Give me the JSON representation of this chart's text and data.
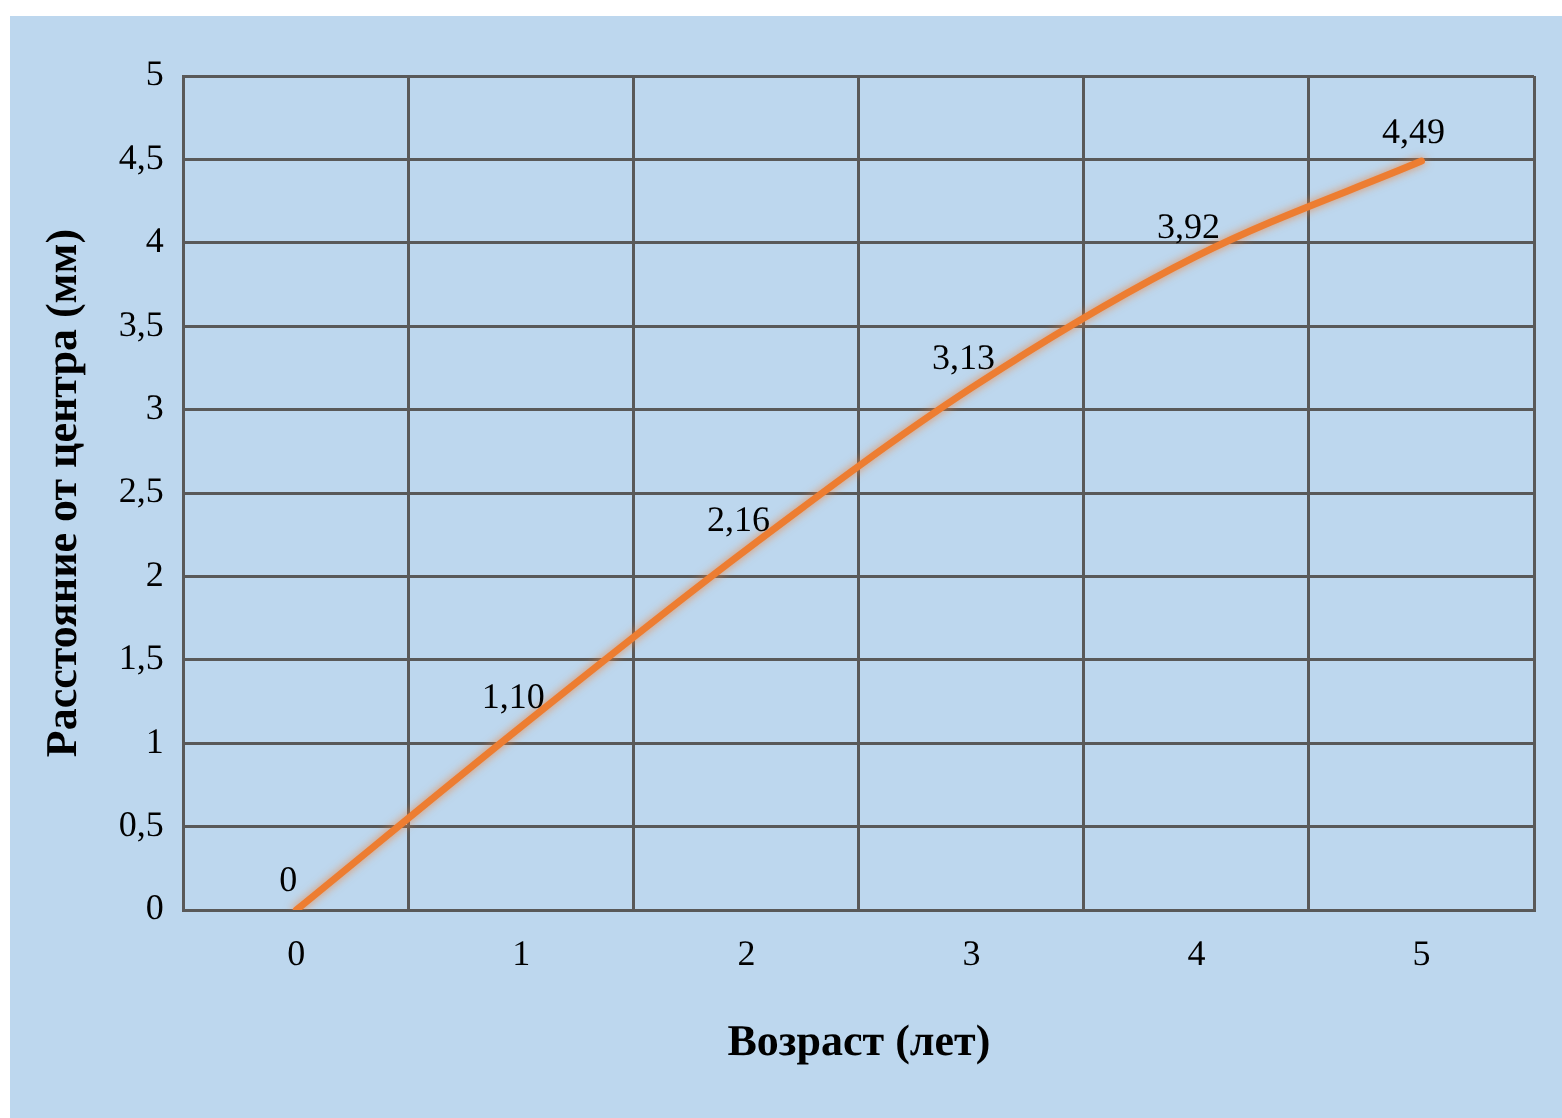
{
  "chart_data": {
    "type": "line",
    "xlabel": "Возраст (лет)",
    "ylabel": "Расстояние от центра (мм)",
    "categories": [
      "0",
      "1",
      "2",
      "3",
      "4",
      "5"
    ],
    "series": [
      {
        "color": "#ed7d31",
        "values": [
          0,
          1.1,
          2.16,
          3.13,
          3.92,
          4.49
        ],
        "value_labels": [
          "0",
          "1,10",
          "2,16",
          "3,13",
          "3,92",
          "4,49"
        ]
      }
    ],
    "ylim": [
      0,
      5
    ],
    "yticks": [
      0,
      {
        "value": 0.5,
        "label": "0,5"
      },
      1,
      {
        "value": 1.5,
        "label": "1,5"
      },
      2,
      {
        "value": 2.5,
        "label": "2,5"
      },
      3,
      {
        "value": 3.5,
        "label": "3,5"
      },
      4,
      {
        "value": 4.5,
        "label": "4,5"
      },
      5
    ],
    "grid": true,
    "legend": false,
    "marker": "none",
    "line_style": "solid"
  }
}
